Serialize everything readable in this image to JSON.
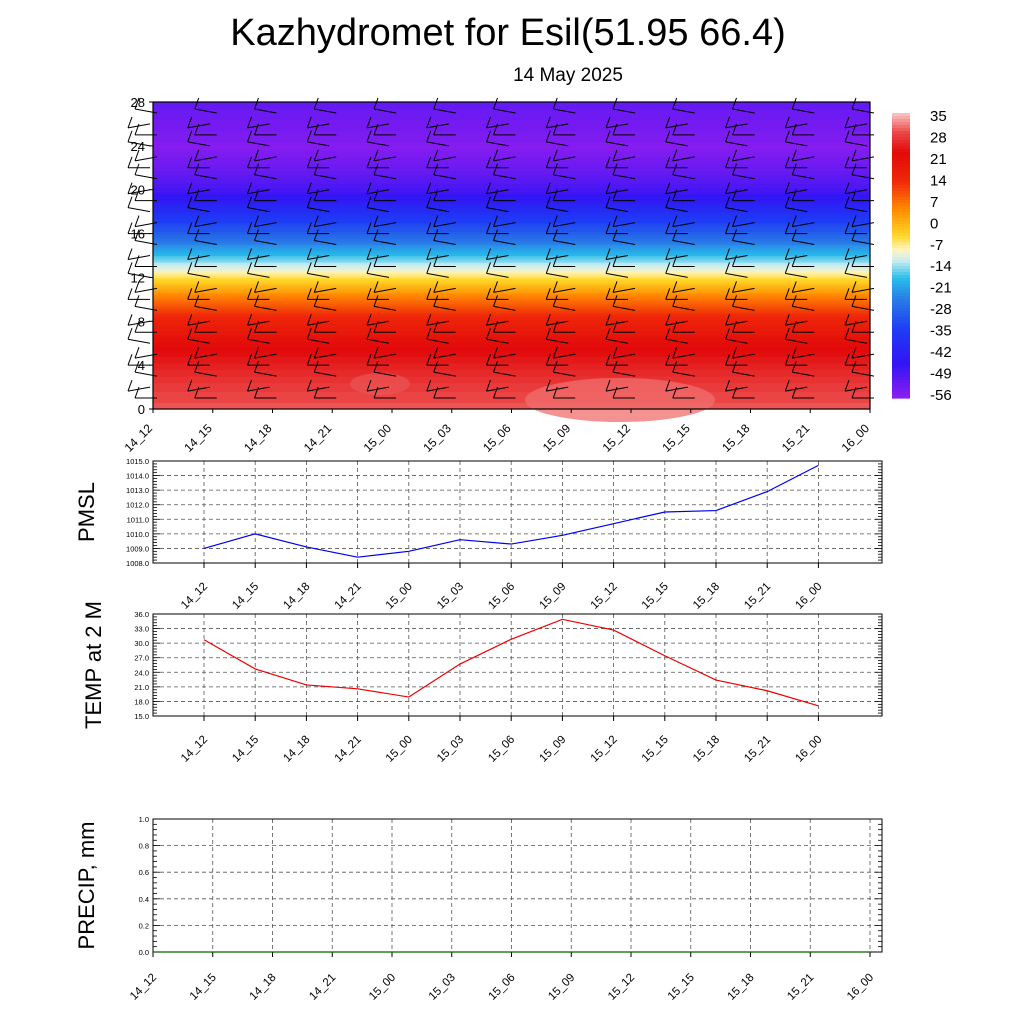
{
  "header": {
    "title": "Kazhydromet for Esil(51.95 66.4)",
    "subtitle": "14 May 2025"
  },
  "chart_data": [
    {
      "type": "heatmap",
      "title": "",
      "xlabel": "",
      "ylabel": "",
      "x_ticks": [
        "14_12",
        "14_15",
        "14_18",
        "14_21",
        "15_00",
        "15_03",
        "15_06",
        "15_09",
        "15_12",
        "15_15",
        "15_18",
        "15_21",
        "16_00"
      ],
      "y_ticks": [
        0,
        4,
        8,
        12,
        16,
        20,
        24,
        28
      ],
      "ylim": [
        0,
        28
      ],
      "colorbar": {
        "labels": [
          "35",
          "28",
          "21",
          "14",
          "7",
          "0",
          "-7",
          "-14",
          "-21",
          "-28",
          "-35",
          "-42",
          "-49",
          "-56"
        ],
        "range": [
          -59,
          38
        ]
      },
      "temperature_profile": [
        {
          "y": 0,
          "value": 32
        },
        {
          "y": 2,
          "value": 30
        },
        {
          "y": 4,
          "value": 27
        },
        {
          "y": 6,
          "value": 23
        },
        {
          "y": 8,
          "value": 17
        },
        {
          "y": 10,
          "value": 8
        },
        {
          "y": 12,
          "value": -5
        },
        {
          "y": 14,
          "value": -18
        },
        {
          "y": 16,
          "value": -30
        },
        {
          "y": 18,
          "value": -40
        },
        {
          "y": 20,
          "value": -50
        },
        {
          "y": 22,
          "value": -55
        },
        {
          "y": 24,
          "value": -58
        },
        {
          "y": 26,
          "value": -56
        },
        {
          "y": 28,
          "value": -54
        }
      ],
      "wind_barbs": "black barbs at every time step and level",
      "grid": false
    },
    {
      "type": "line",
      "ylabel": "PMSL",
      "x": [
        "14_12",
        "14_15",
        "14_18",
        "14_21",
        "15_00",
        "15_03",
        "15_06",
        "15_09",
        "15_12",
        "15_15",
        "15_18",
        "15_21",
        "16_00"
      ],
      "series": [
        {
          "color": "#0000ee",
          "values": [
            1009.0,
            1010.0,
            1009.1,
            1008.4,
            1008.8,
            1009.6,
            1009.3,
            1009.9,
            1010.7,
            1011.5,
            1011.6,
            1012.9,
            1014.7
          ]
        }
      ],
      "ylim": [
        1008.0,
        1015.0
      ],
      "y_ticks": [
        "1008.0",
        "1009.0",
        "1010.0",
        "1011.0",
        "1012.0",
        "1013.0",
        "1014.0",
        "1015.0"
      ],
      "grid": true
    },
    {
      "type": "line",
      "ylabel": "TEMP at 2 M",
      "x": [
        "14_12",
        "14_15",
        "14_18",
        "14_21",
        "15_00",
        "15_03",
        "15_06",
        "15_09",
        "15_12",
        "15_15",
        "15_18",
        "15_21",
        "16_00"
      ],
      "series": [
        {
          "color": "#ee0000",
          "values": [
            30.7,
            24.7,
            21.4,
            20.6,
            18.9,
            25.7,
            30.8,
            34.9,
            32.7,
            27.4,
            22.4,
            20.2,
            17.1
          ]
        }
      ],
      "ylim": [
        15.0,
        36.0
      ],
      "y_ticks": [
        "15.0",
        "18.0",
        "21.0",
        "24.0",
        "27.0",
        "30.0",
        "33.0",
        "36.0"
      ],
      "grid": true
    },
    {
      "type": "line",
      "ylabel": "PRECIP, mm",
      "x": [
        "14_12",
        "14_15",
        "14_18",
        "14_21",
        "15_00",
        "15_03",
        "15_06",
        "15_09",
        "15_12",
        "15_15",
        "15_18",
        "15_21",
        "16_00"
      ],
      "series": [
        {
          "color": "#006400",
          "values": [
            0,
            0,
            0,
            0,
            0,
            0,
            0,
            0,
            0,
            0,
            0,
            0,
            0
          ]
        }
      ],
      "ylim": [
        0.0,
        1.0
      ],
      "y_ticks": [
        "0.0",
        "0.2",
        "0.4",
        "0.6",
        "0.8",
        "1.0"
      ],
      "grid": true
    }
  ]
}
